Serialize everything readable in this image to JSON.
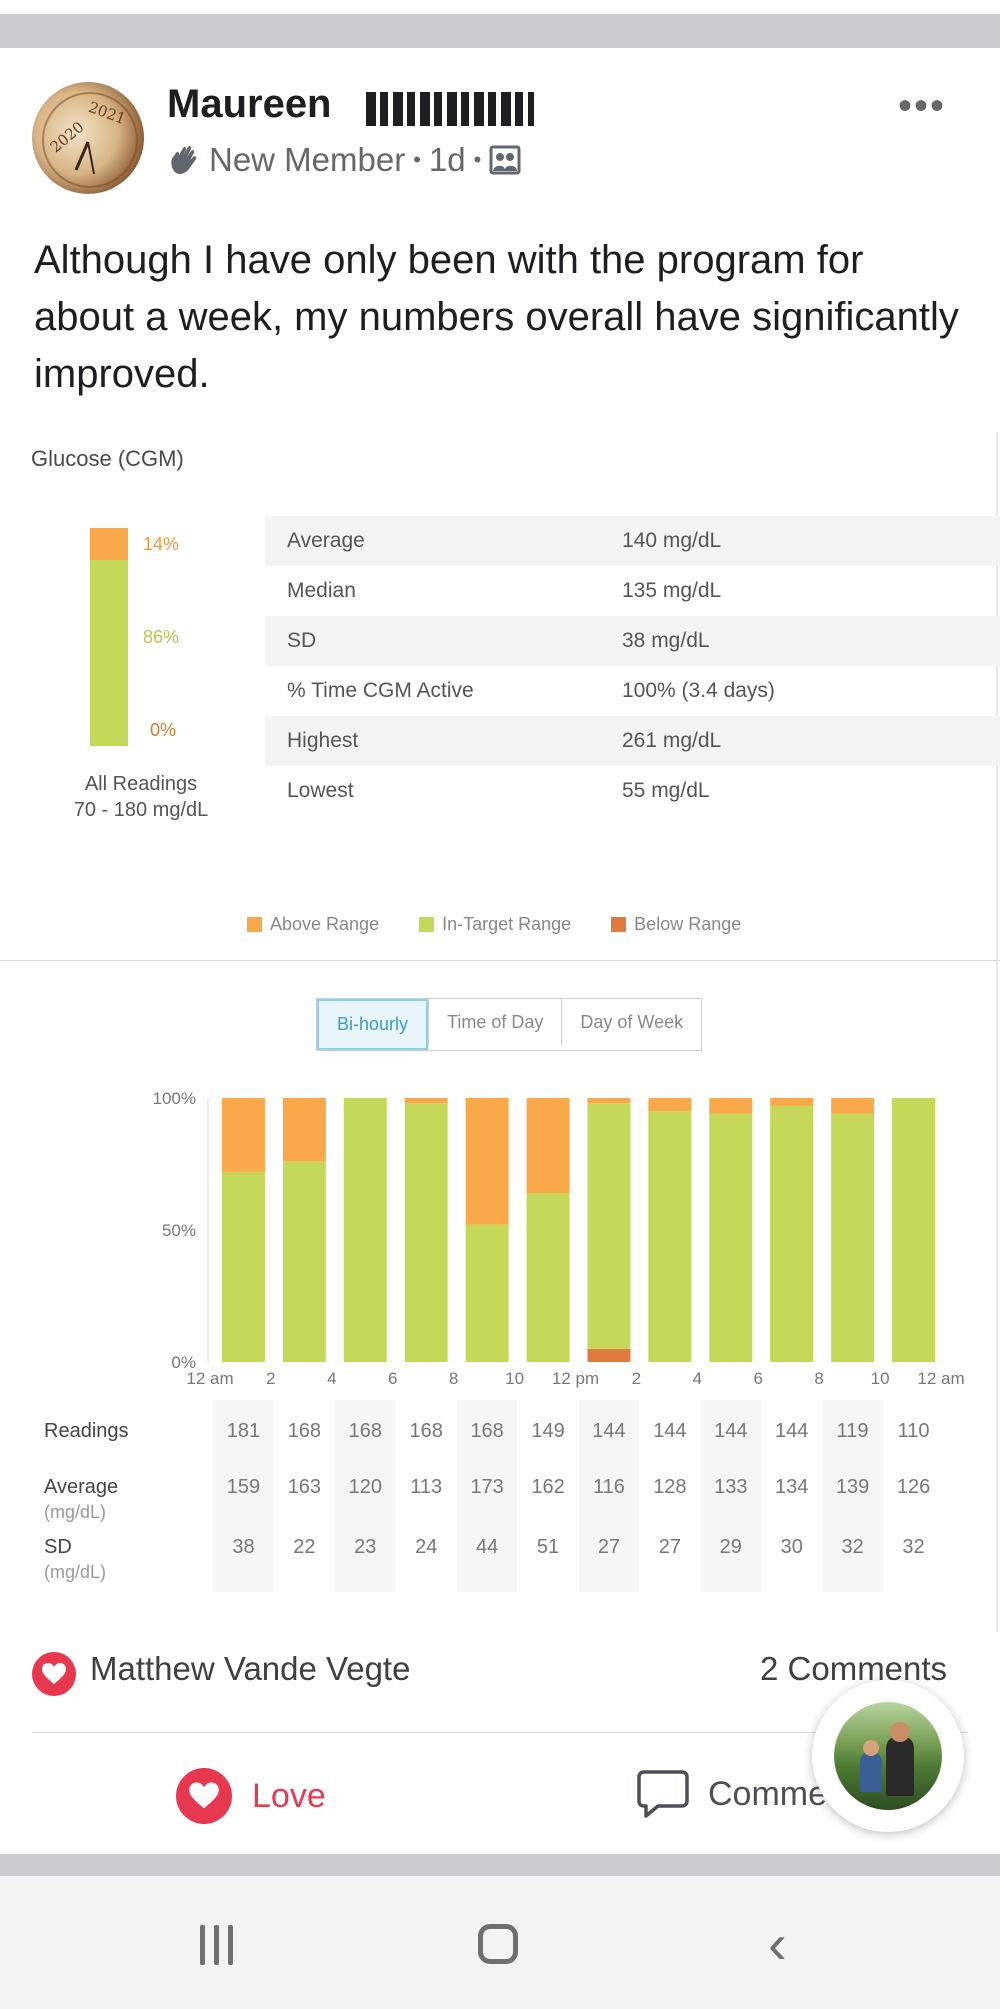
{
  "post": {
    "author_first": "Maureen",
    "badge": "New Member",
    "time": "1d",
    "text": "Although I have only been with the program for about a week, my numbers overall have significantly improved."
  },
  "avatar": {
    "year_a": "2020",
    "year_b": "2021"
  },
  "report": {
    "title": "Glucose (CGM)",
    "range_bar": {
      "above_pct_label": "14%",
      "in_pct_label": "86%",
      "below_pct_label": "0%",
      "above": 14,
      "in": 86,
      "below": 0
    },
    "all_readings_line1": "All Readings",
    "all_readings_line2": "70 - 180 mg/dL",
    "stats": [
      {
        "label": "Average",
        "value": "140 mg/dL"
      },
      {
        "label": "Median",
        "value": "135 mg/dL"
      },
      {
        "label": "SD",
        "value": "38 mg/dL"
      },
      {
        "label": "% Time CGM Active",
        "value": "100% (3.4 days)"
      },
      {
        "label": "Highest",
        "value": "261 mg/dL"
      },
      {
        "label": "Lowest",
        "value": "55 mg/dL"
      }
    ],
    "legend": {
      "above": "Above Range",
      "in_target": "In-Target Range",
      "below": "Below Range"
    },
    "tabs": [
      "Bi-hourly",
      "Time of Day",
      "Day of Week"
    ],
    "active_tab": 0,
    "colors": {
      "above": "#f9a94a",
      "in_target": "#c6d85a",
      "below": "#e07a3e"
    }
  },
  "chart_data": {
    "type": "bar",
    "stacked": true,
    "x_ticks": [
      "12 am",
      "2",
      "4",
      "6",
      "8",
      "10",
      "12 pm",
      "2",
      "4",
      "6",
      "8",
      "10",
      "12 am"
    ],
    "y_ticks": [
      "100%",
      "50%",
      "0%"
    ],
    "ylim": [
      0,
      100
    ],
    "series": [
      {
        "name": "Below Range",
        "values": [
          0,
          0,
          0,
          0,
          0,
          0,
          5,
          0,
          0,
          0,
          0,
          0
        ]
      },
      {
        "name": "In-Target Range",
        "values": [
          72,
          76,
          100,
          98,
          52,
          64,
          93,
          95,
          94,
          97,
          94,
          100
        ]
      },
      {
        "name": "Above Range",
        "values": [
          28,
          24,
          0,
          2,
          48,
          36,
          2,
          5,
          6,
          3,
          6,
          0
        ]
      }
    ],
    "table": {
      "readings_label": "Readings",
      "average_label": "Average",
      "average_unit": "(mg/dL)",
      "sd_label": "SD",
      "sd_unit": "(mg/dL)",
      "readings": [
        "181",
        "168",
        "168",
        "168",
        "168",
        "149",
        "144",
        "144",
        "144",
        "144",
        "119",
        "110"
      ],
      "average": [
        "159",
        "163",
        "120",
        "113",
        "173",
        "162",
        "116",
        "128",
        "133",
        "134",
        "139",
        "126"
      ],
      "sd": [
        "38",
        "22",
        "23",
        "24",
        "44",
        "51",
        "27",
        "27",
        "29",
        "30",
        "32",
        "32"
      ]
    }
  },
  "reactions": {
    "reactor": "Matthew Vande Vegte",
    "comments": "2 Comments",
    "love_label": "Love",
    "comment_label": "Comme"
  }
}
